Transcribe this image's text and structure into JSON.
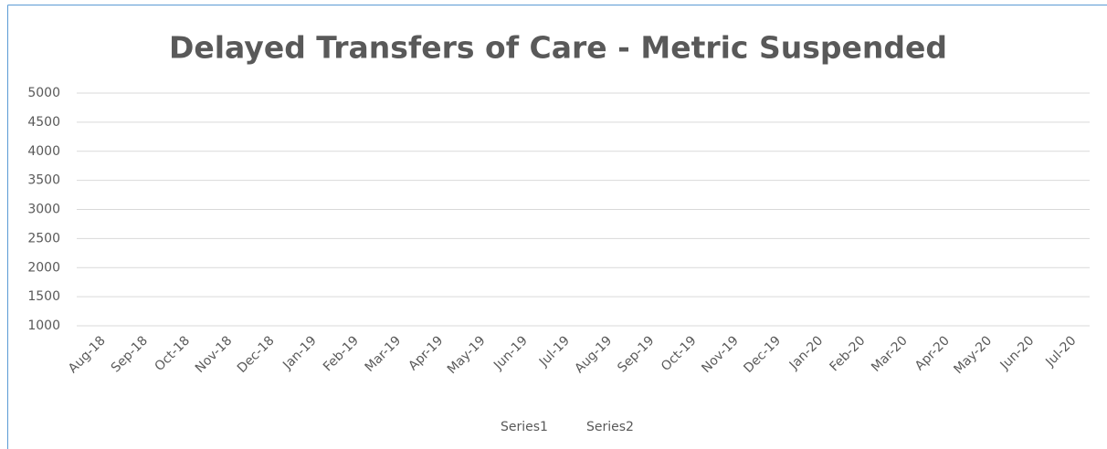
{
  "chart_data": {
    "type": "line",
    "title": "Delayed Transfers of Care - Metric Suspended",
    "categories": [
      "Aug-18",
      "Sep-18",
      "Oct-18",
      "Nov-18",
      "Dec-18",
      "Jan-19",
      "Feb-19",
      "Mar-19",
      "Apr-19",
      "May-19",
      "Jun-19",
      "Jul-19",
      "Aug-19",
      "Sep-19",
      "Oct-19",
      "Nov-19",
      "Dec-19",
      "Jan-20",
      "Feb-20",
      "Mar-20",
      "Apr-20",
      "May-20",
      "Jun-20",
      "Jul-20"
    ],
    "series": [
      {
        "name": "Series1",
        "values": [
          null,
          null,
          null,
          null,
          null,
          null,
          null,
          null,
          null,
          null,
          null,
          null,
          null,
          null,
          null,
          null,
          null,
          null,
          null,
          null,
          null,
          null,
          null,
          null
        ]
      },
      {
        "name": "Series2",
        "values": [
          null,
          null,
          null,
          null,
          null,
          null,
          null,
          null,
          null,
          null,
          null,
          null,
          null,
          null,
          null,
          null,
          null,
          null,
          null,
          null,
          null,
          null,
          null,
          null
        ]
      }
    ],
    "ylim": [
      1000,
      5000
    ],
    "yticks": [
      1000,
      1500,
      2000,
      2500,
      3000,
      3500,
      4000,
      4500,
      5000
    ],
    "grid": true,
    "legend": "bottom"
  }
}
